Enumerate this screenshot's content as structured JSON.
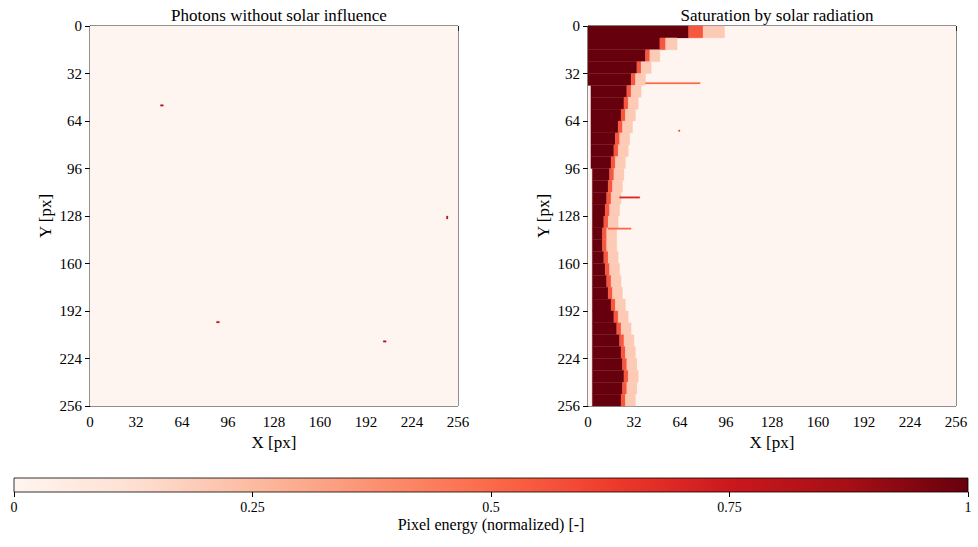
{
  "chart_data": [
    {
      "type": "heatmap",
      "title": "Photons without solar influence",
      "xlabel": "X [px]",
      "ylabel": "Y [px]",
      "xlim": [
        0,
        256
      ],
      "ylim": [
        0,
        256
      ],
      "xticks": [
        0,
        32,
        64,
        96,
        128,
        160,
        192,
        224,
        256
      ],
      "yticks": [
        0,
        32,
        64,
        96,
        128,
        160,
        192,
        224,
        256
      ],
      "runs": [
        [
          0,
          256,
          0,
          256,
          0
        ],
        [
          49,
          51,
          53,
          54,
          0.85
        ],
        [
          88,
          90,
          199,
          200,
          0.85
        ],
        [
          204,
          206,
          212,
          213,
          0.85
        ],
        [
          248,
          249,
          128,
          130,
          0.85
        ]
      ]
    },
    {
      "type": "heatmap",
      "title": "Saturation by solar radiation",
      "xlabel": "X [px]",
      "ylabel": "Y [px]",
      "xlim": [
        0,
        256
      ],
      "ylim": [
        0,
        256
      ],
      "xticks": [
        0,
        32,
        64,
        96,
        128,
        160,
        192,
        224,
        256
      ],
      "yticks": [
        0,
        32,
        64,
        96,
        128,
        160,
        192,
        224,
        256
      ],
      "runs": [
        [
          0,
          256,
          0,
          256,
          0
        ],
        [
          0,
          70,
          0,
          8,
          1
        ],
        [
          70,
          80,
          0,
          8,
          0.55
        ],
        [
          80,
          95,
          0,
          8,
          0.2
        ],
        [
          0,
          50,
          8,
          16,
          1
        ],
        [
          50,
          54,
          8,
          16,
          0.55
        ],
        [
          54,
          62,
          8,
          16,
          0.2
        ],
        [
          0,
          40,
          16,
          24,
          1
        ],
        [
          40,
          43,
          16,
          24,
          0.55
        ],
        [
          43,
          50,
          16,
          24,
          0.2
        ],
        [
          0,
          34,
          24,
          32,
          1
        ],
        [
          34,
          37,
          24,
          32,
          0.55
        ],
        [
          37,
          44,
          24,
          32,
          0.2
        ],
        [
          0,
          30,
          32,
          40,
          1
        ],
        [
          30,
          33,
          32,
          40,
          0.55
        ],
        [
          33,
          40,
          32,
          40,
          0.2
        ],
        [
          2,
          27,
          40,
          48,
          1
        ],
        [
          27,
          30,
          40,
          48,
          0.55
        ],
        [
          30,
          37,
          40,
          48,
          0.2
        ],
        [
          2,
          25,
          48,
          56,
          1
        ],
        [
          25,
          28,
          48,
          56,
          0.55
        ],
        [
          28,
          35,
          48,
          56,
          0.2
        ],
        [
          2,
          23,
          56,
          64,
          1
        ],
        [
          23,
          26,
          56,
          64,
          0.55
        ],
        [
          26,
          33,
          56,
          64,
          0.2
        ],
        [
          2,
          21,
          64,
          72,
          1
        ],
        [
          21,
          24,
          64,
          72,
          0.55
        ],
        [
          24,
          31,
          64,
          72,
          0.2
        ],
        [
          2,
          19,
          72,
          80,
          1
        ],
        [
          19,
          22,
          72,
          80,
          0.55
        ],
        [
          22,
          29,
          72,
          80,
          0.2
        ],
        [
          2,
          18,
          80,
          88,
          1
        ],
        [
          18,
          21,
          80,
          88,
          0.55
        ],
        [
          21,
          28,
          80,
          88,
          0.2
        ],
        [
          2,
          16,
          88,
          96,
          1
        ],
        [
          16,
          19,
          88,
          96,
          0.55
        ],
        [
          19,
          26,
          88,
          96,
          0.2
        ],
        [
          3,
          15,
          96,
          104,
          1
        ],
        [
          15,
          18,
          96,
          104,
          0.55
        ],
        [
          18,
          25,
          96,
          104,
          0.2
        ],
        [
          3,
          14,
          104,
          112,
          1
        ],
        [
          14,
          17,
          104,
          112,
          0.55
        ],
        [
          17,
          24,
          104,
          112,
          0.2
        ],
        [
          3,
          13,
          112,
          120,
          1
        ],
        [
          13,
          16,
          112,
          120,
          0.55
        ],
        [
          16,
          23,
          112,
          120,
          0.2
        ],
        [
          3,
          12,
          120,
          128,
          1
        ],
        [
          12,
          15,
          120,
          128,
          0.55
        ],
        [
          15,
          22,
          120,
          128,
          0.2
        ],
        [
          3,
          11,
          128,
          136,
          1
        ],
        [
          11,
          14,
          128,
          136,
          0.55
        ],
        [
          14,
          21,
          128,
          136,
          0.2
        ],
        [
          3,
          10,
          136,
          144,
          1
        ],
        [
          10,
          13,
          136,
          144,
          0.55
        ],
        [
          13,
          20,
          136,
          144,
          0.2
        ],
        [
          3,
          10,
          144,
          152,
          1
        ],
        [
          10,
          13,
          144,
          152,
          0.55
        ],
        [
          13,
          20,
          144,
          152,
          0.2
        ],
        [
          3,
          11,
          152,
          160,
          1
        ],
        [
          11,
          14,
          152,
          160,
          0.55
        ],
        [
          14,
          21,
          152,
          160,
          0.2
        ],
        [
          3,
          12,
          160,
          168,
          1
        ],
        [
          12,
          15,
          160,
          168,
          0.55
        ],
        [
          15,
          22,
          160,
          168,
          0.2
        ],
        [
          3,
          13,
          168,
          176,
          1
        ],
        [
          13,
          16,
          168,
          176,
          0.55
        ],
        [
          16,
          23,
          168,
          176,
          0.2
        ],
        [
          3,
          14,
          176,
          184,
          1
        ],
        [
          14,
          17,
          176,
          184,
          0.55
        ],
        [
          17,
          24,
          176,
          184,
          0.2
        ],
        [
          3,
          16,
          184,
          192,
          1
        ],
        [
          16,
          19,
          184,
          192,
          0.55
        ],
        [
          19,
          26,
          184,
          192,
          0.2
        ],
        [
          3,
          18,
          192,
          200,
          1
        ],
        [
          18,
          21,
          192,
          200,
          0.55
        ],
        [
          21,
          28,
          192,
          200,
          0.2
        ],
        [
          3,
          20,
          200,
          208,
          1
        ],
        [
          20,
          23,
          200,
          208,
          0.55
        ],
        [
          23,
          30,
          200,
          208,
          0.2
        ],
        [
          3,
          22,
          208,
          216,
          1
        ],
        [
          22,
          25,
          208,
          216,
          0.55
        ],
        [
          25,
          32,
          208,
          216,
          0.2
        ],
        [
          3,
          23,
          216,
          224,
          1
        ],
        [
          23,
          26,
          216,
          224,
          0.55
        ],
        [
          26,
          33,
          216,
          224,
          0.2
        ],
        [
          3,
          24,
          224,
          232,
          1
        ],
        [
          24,
          27,
          224,
          232,
          0.55
        ],
        [
          27,
          34,
          224,
          232,
          0.2
        ],
        [
          3,
          25,
          232,
          240,
          1
        ],
        [
          25,
          28,
          232,
          240,
          0.55
        ],
        [
          28,
          35,
          232,
          240,
          0.2
        ],
        [
          3,
          24,
          240,
          248,
          1
        ],
        [
          24,
          27,
          240,
          248,
          0.55
        ],
        [
          27,
          34,
          240,
          248,
          0.2
        ],
        [
          3,
          23,
          248,
          256,
          1
        ],
        [
          23,
          26,
          248,
          256,
          0.55
        ],
        [
          26,
          33,
          248,
          256,
          0.2
        ],
        [
          40,
          78,
          38,
          39,
          0.5
        ],
        [
          22,
          36,
          115,
          116,
          0.7
        ],
        [
          63,
          64,
          70,
          71,
          0.6
        ],
        [
          14,
          30,
          136,
          137,
          0.5
        ]
      ]
    }
  ],
  "colorbar": {
    "label": "Pixel energy (normalized) [-]",
    "range": [
      0,
      1
    ],
    "ticks": [
      0,
      0.25,
      0.5,
      0.75,
      1
    ]
  }
}
